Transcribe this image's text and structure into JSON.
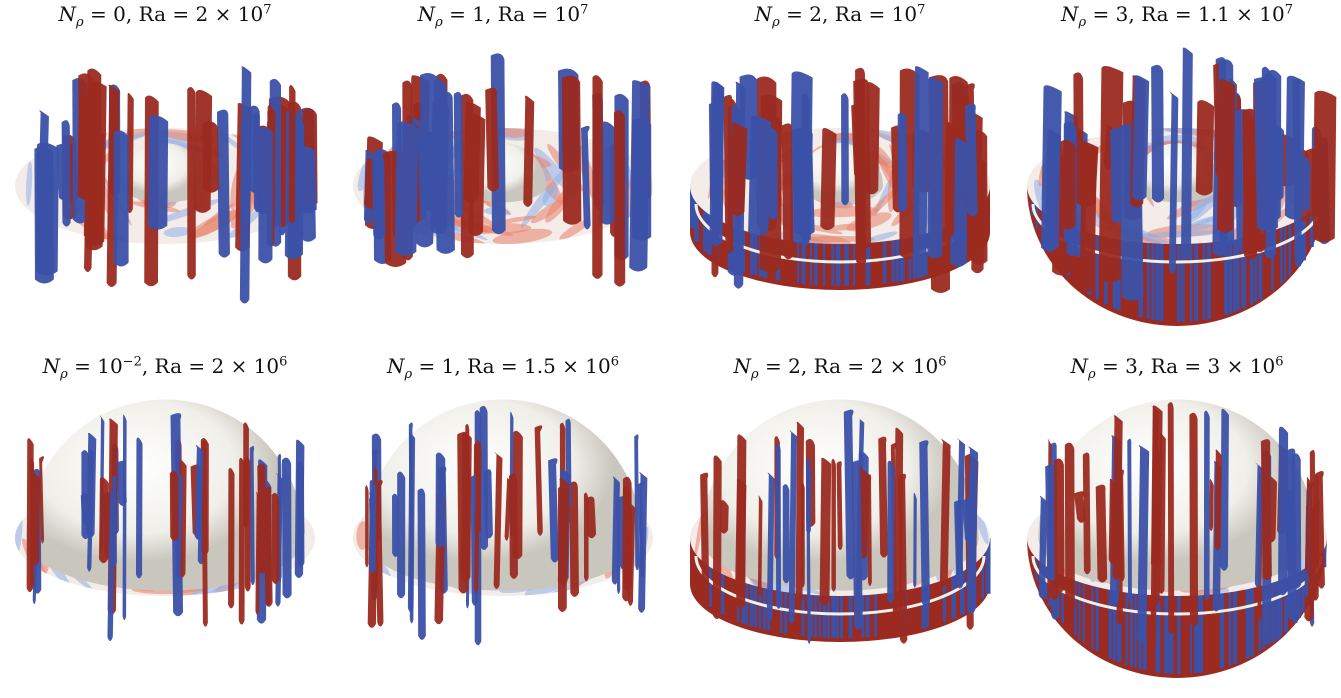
{
  "figure": {
    "panels": [
      {
        "np": "0",
        "np_exp": "",
        "ra": "2 × 10",
        "ra_exp": "7",
        "core": 0.13,
        "shell": "top",
        "seed": 11
      },
      {
        "np": "1",
        "np_exp": "",
        "ra": "10",
        "ra_exp": "7",
        "core": 0.13,
        "shell": "top",
        "seed": 23
      },
      {
        "np": "2",
        "np_exp": "",
        "ra": "10",
        "ra_exp": "7",
        "core": 0.13,
        "shell": "band",
        "seed": 37
      },
      {
        "np": "3",
        "np_exp": "",
        "ra": "1.1 × 10",
        "ra_exp": "7",
        "core": 0.13,
        "shell": "bowl",
        "seed": 41
      },
      {
        "np": "10",
        "np_exp": "−2",
        "ra": "2 × 10",
        "ra_exp": "6",
        "core": 0.42,
        "shell": "top",
        "seed": 53
      },
      {
        "np": "1",
        "np_exp": "",
        "ra": "1.5 × 10",
        "ra_exp": "6",
        "core": 0.42,
        "shell": "top",
        "seed": 67
      },
      {
        "np": "2",
        "np_exp": "",
        "ra": "2 × 10",
        "ra_exp": "6",
        "core": 0.42,
        "shell": "band",
        "seed": 71
      },
      {
        "np": "3",
        "np_exp": "",
        "ra": "3 × 10",
        "ra_exp": "6",
        "core": 0.42,
        "shell": "bowl",
        "seed": 89
      }
    ],
    "colors": {
      "positive": "#9b2a20",
      "negative": "#3b51a8",
      "disc_hot": "#e8826a",
      "disc_cold": "#8fb0e8",
      "disc_base": "#f3ece8",
      "core": "#f0efe9"
    }
  }
}
